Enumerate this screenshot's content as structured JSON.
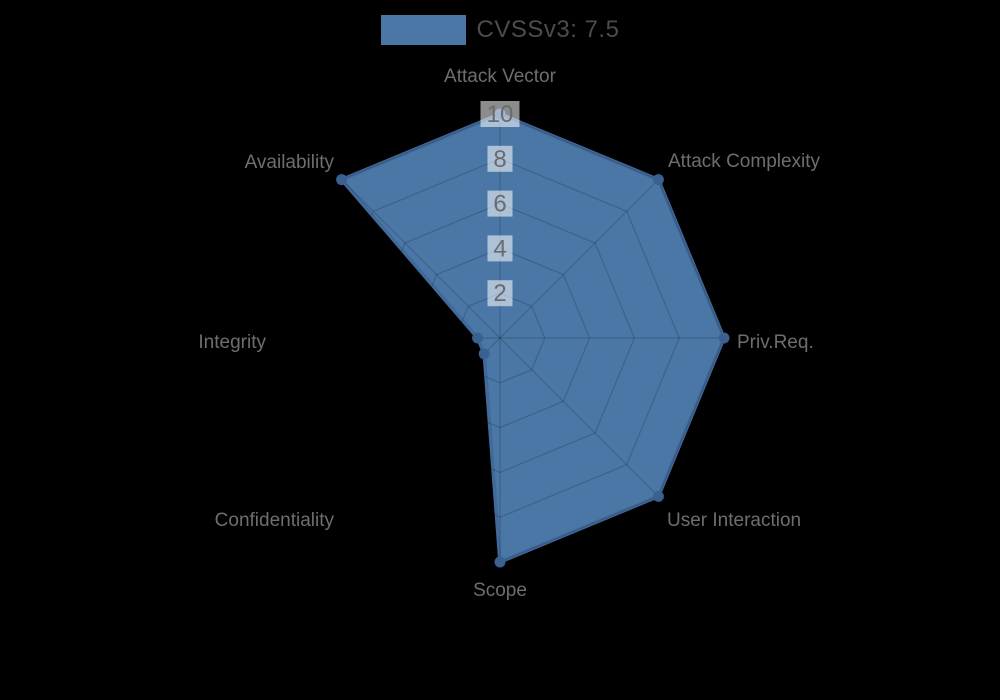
{
  "legend": {
    "label": "CVSSv3: 7.5"
  },
  "chart_data": {
    "type": "radar",
    "title": "",
    "axes": [
      "Attack Vector",
      "Attack Complexity",
      "Priv.Req.",
      "User Interaction",
      "Scope",
      "Confidentiality",
      "Integrity",
      "Availability"
    ],
    "series": [
      {
        "name": "CVSSv3: 7.5",
        "values": [
          10,
          10,
          10,
          10,
          10,
          1,
          1,
          10
        ]
      }
    ],
    "ticks": [
      2,
      4,
      6,
      8,
      10
    ],
    "rmin": 0,
    "rmax": 10,
    "grid": true,
    "legend_position": "top",
    "colors": {
      "fill": "#4b77a6",
      "border": "#41699a",
      "point": "#3b6191",
      "grid_line": "rgba(0,0,0,0.16)",
      "tick_text": "#676c72",
      "tick_backdrop": "rgba(255,255,255,0.55)",
      "axis_label": "#6e6e6e",
      "legend_text": "#4c4c4c",
      "background": "#000000"
    }
  }
}
